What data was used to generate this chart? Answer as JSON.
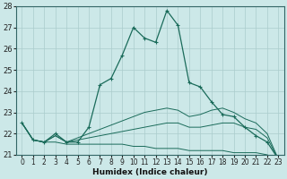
{
  "xlabel": "Humidex (Indice chaleur)",
  "xlim": [
    -0.5,
    23.5
  ],
  "ylim": [
    21,
    28
  ],
  "yticks": [
    21,
    22,
    23,
    24,
    25,
    26,
    27,
    28
  ],
  "xticks": [
    0,
    1,
    2,
    3,
    4,
    5,
    6,
    7,
    8,
    9,
    10,
    11,
    12,
    13,
    14,
    15,
    16,
    17,
    18,
    19,
    20,
    21,
    22,
    23
  ],
  "bg_color": "#cce8e8",
  "grid_color": "#aacccc",
  "line_color": "#1a6b5a",
  "main_line": {
    "x": [
      0,
      1,
      2,
      3,
      4,
      5,
      6,
      7,
      8,
      9,
      10,
      11,
      12,
      13,
      14,
      15,
      16,
      17,
      18,
      19,
      20,
      21,
      22,
      23
    ],
    "y": [
      22.5,
      21.7,
      21.6,
      22.0,
      21.6,
      21.6,
      22.3,
      24.3,
      24.6,
      25.7,
      27.0,
      26.5,
      26.3,
      27.8,
      27.1,
      24.4,
      24.2,
      23.5,
      22.9,
      22.8,
      22.3,
      21.9,
      21.6,
      20.8
    ]
  },
  "line_declining": {
    "x": [
      0,
      1,
      2,
      3,
      4,
      5,
      6,
      7,
      8,
      9,
      10,
      11,
      12,
      13,
      14,
      15,
      16,
      17,
      18,
      19,
      20,
      21,
      22,
      23
    ],
    "y": [
      22.5,
      21.7,
      21.6,
      21.6,
      21.5,
      21.5,
      21.5,
      21.5,
      21.5,
      21.5,
      21.4,
      21.4,
      21.3,
      21.3,
      21.3,
      21.2,
      21.2,
      21.2,
      21.2,
      21.1,
      21.1,
      21.1,
      21.0,
      20.8
    ]
  },
  "line_slight": {
    "x": [
      0,
      1,
      2,
      3,
      4,
      5,
      6,
      7,
      8,
      9,
      10,
      11,
      12,
      13,
      14,
      15,
      16,
      17,
      18,
      19,
      20,
      21,
      22,
      23
    ],
    "y": [
      22.5,
      21.7,
      21.6,
      21.9,
      21.6,
      21.7,
      21.8,
      21.9,
      22.0,
      22.1,
      22.2,
      22.3,
      22.4,
      22.5,
      22.5,
      22.3,
      22.3,
      22.4,
      22.5,
      22.5,
      22.3,
      22.2,
      21.8,
      20.8
    ]
  },
  "line_moderate": {
    "x": [
      0,
      1,
      2,
      3,
      4,
      5,
      6,
      7,
      8,
      9,
      10,
      11,
      12,
      13,
      14,
      15,
      16,
      17,
      18,
      19,
      20,
      21,
      22,
      23
    ],
    "y": [
      22.5,
      21.7,
      21.6,
      21.9,
      21.6,
      21.8,
      22.0,
      22.2,
      22.4,
      22.6,
      22.8,
      23.0,
      23.1,
      23.2,
      23.1,
      22.8,
      22.9,
      23.1,
      23.2,
      23.0,
      22.7,
      22.5,
      22.0,
      20.8
    ]
  }
}
